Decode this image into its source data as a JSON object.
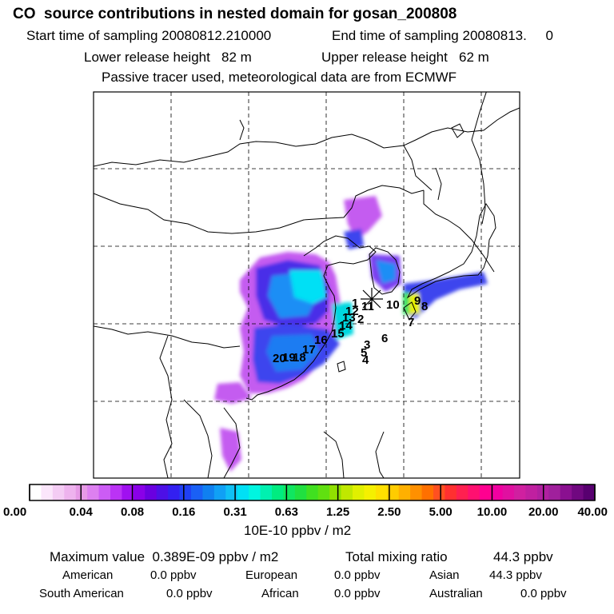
{
  "header": {
    "title": "CO  source contributions in nested domain for gosan_200808",
    "start_label": "Start time of sampling",
    "start_value": "20080812.210000",
    "end_label": "End time of sampling",
    "end_value": "20080813.     0",
    "lower_label": "Lower release height",
    "lower_value": "82 m",
    "upper_label": "Upper release height",
    "upper_value": "62 m",
    "note": "Passive tracer used, meteorological data are from ECMWF"
  },
  "map": {
    "site_labels": [
      "1",
      "2",
      "3",
      "4",
      "5",
      "6",
      "7",
      "8",
      "9",
      "10",
      "11",
      "12",
      "13",
      "14",
      "15",
      "16",
      "17",
      "18",
      "19",
      "20"
    ]
  },
  "colorbar": {
    "tick_labels": [
      "0.00",
      "0.04",
      "0.08",
      "0.16",
      "0.31",
      "0.63",
      "1.25",
      "2.50",
      "5.00",
      "10.00",
      "20.00",
      "40.00"
    ],
    "units": "10E-10 ppbv / m2",
    "colors": [
      "#ffffff",
      "#fbe6fb",
      "#f4ccf4",
      "#eeb3ee",
      "#e69ae6",
      "#dd80f0",
      "#cc5cf5",
      "#bb33f5",
      "#a010f0",
      "#8a00e8",
      "#6a00e0",
      "#4d10e6",
      "#3320f0",
      "#2040f5",
      "#1a60f5",
      "#1080f0",
      "#10a0f5",
      "#10c0f5",
      "#00e0f5",
      "#00f5e0",
      "#00f0b0",
      "#00ec80",
      "#10e660",
      "#20e040",
      "#40e020",
      "#60e010",
      "#90e000",
      "#c0e800",
      "#e0f000",
      "#f5f000",
      "#ffe000",
      "#ffcc00",
      "#ffb000",
      "#ff9000",
      "#ff7000",
      "#ff5020",
      "#ff3030",
      "#ff2050",
      "#ff1070",
      "#ff0090",
      "#f000a0",
      "#e010a0",
      "#d020a0",
      "#c020a0",
      "#b020a0",
      "#a0209c",
      "#8a1090",
      "#700880",
      "#580070"
    ]
  },
  "summary": {
    "max_label": "Maximum value",
    "max_value": "0.389E-09 ppbv / m2",
    "total_label": "Total mixing ratio",
    "total_value": "44.3 ppbv",
    "regions": [
      {
        "name": "American",
        "value": "0.0 ppbv"
      },
      {
        "name": "European",
        "value": "0.0 ppbv"
      },
      {
        "name": "Asian",
        "value": "44.3 ppbv"
      },
      {
        "name": "South American",
        "value": "0.0 ppbv"
      },
      {
        "name": "African",
        "value": "0.0 ppbv"
      },
      {
        "name": "Australian",
        "value": "0.0 ppbv"
      }
    ]
  }
}
